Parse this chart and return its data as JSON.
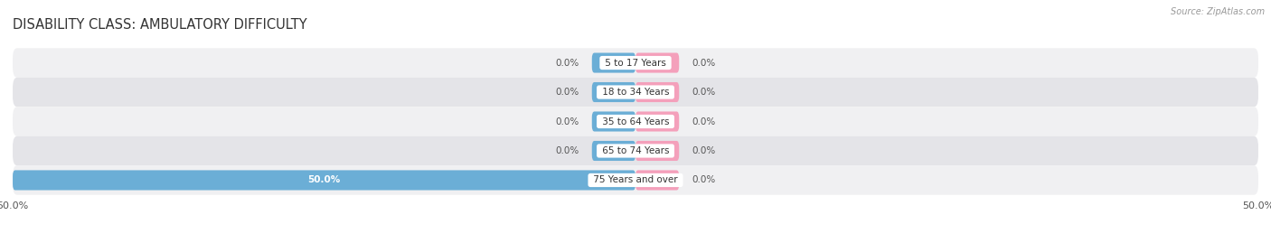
{
  "title": "DISABILITY CLASS: AMBULATORY DIFFICULTY",
  "source": "Source: ZipAtlas.com",
  "categories": [
    "5 to 17 Years",
    "18 to 34 Years",
    "35 to 64 Years",
    "65 to 74 Years",
    "75 Years and over"
  ],
  "male_values": [
    0.0,
    0.0,
    0.0,
    0.0,
    50.0
  ],
  "female_values": [
    0.0,
    0.0,
    0.0,
    0.0,
    0.0
  ],
  "x_max": 50.0,
  "male_color": "#6baed6",
  "female_color": "#f4a0bb",
  "row_bg_light": "#f0f0f2",
  "row_bg_dark": "#e4e4e8",
  "title_fontsize": 10.5,
  "label_fontsize": 7.5,
  "category_fontsize": 7.5,
  "axis_fontsize": 8,
  "source_fontsize": 7
}
